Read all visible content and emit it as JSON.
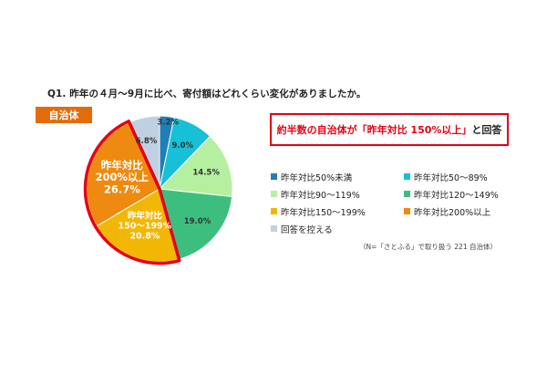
{
  "question": "Q1. 昨年の４月～9月に比べ、寄付額はどれくらい変化がありましたか。",
  "tag": "自治体",
  "callout": {
    "part1": "約半数の自治体が「昨年対比 150%以上」",
    "part2": "と回答"
  },
  "note": "（N=「さとふる」で取り扱う 221 自治体）",
  "chart_data": {
    "type": "pie",
    "title": "",
    "slices": [
      {
        "name": "昨年対比50%未満",
        "value": 3.2,
        "label": "3.2%",
        "color": "#1f7fb6"
      },
      {
        "name": "昨年対比50～89%",
        "value": 9.0,
        "label": "9.0%",
        "color": "#17c0d6"
      },
      {
        "name": "昨年対比90～119%",
        "value": 14.5,
        "label": "14.5%",
        "color": "#b5f0a0"
      },
      {
        "name": "昨年対比120～149%",
        "value": 19.0,
        "label": "19.0%",
        "color": "#3cbf7e"
      },
      {
        "name": "昨年対比150～199%",
        "value": 20.8,
        "label_lines": [
          "昨年対比",
          "150～199%",
          "20.8%"
        ],
        "color": "#f2b705"
      },
      {
        "name": "昨年対比200%以上",
        "value": 26.7,
        "label_lines": [
          "昨年対比",
          "200%以上",
          "26.7%"
        ],
        "color": "#ee8a10"
      },
      {
        "name": "回答を控える",
        "value": 6.8,
        "label": "6.8%",
        "color": "#bdd1e3"
      }
    ],
    "highlighted": [
      "昨年対比150～199%",
      "昨年対比200%以上"
    ],
    "highlight_color": "#e60012",
    "legend": {
      "placement": "right",
      "items": [
        {
          "label": "昨年対比50%未満",
          "color": "#1f7fb6"
        },
        {
          "label": "昨年対比50～89%",
          "color": "#17c0d6"
        },
        {
          "label": "昨年対比90～119%",
          "color": "#b5f0a0"
        },
        {
          "label": "昨年対比120～149%",
          "color": "#3cbf7e"
        },
        {
          "label": "昨年対比150～199%",
          "color": "#f2b705"
        },
        {
          "label": "昨年対比200%以上",
          "color": "#ee8a10"
        },
        {
          "label": "回答を控える",
          "color": "#bdd1e3"
        }
      ]
    }
  }
}
